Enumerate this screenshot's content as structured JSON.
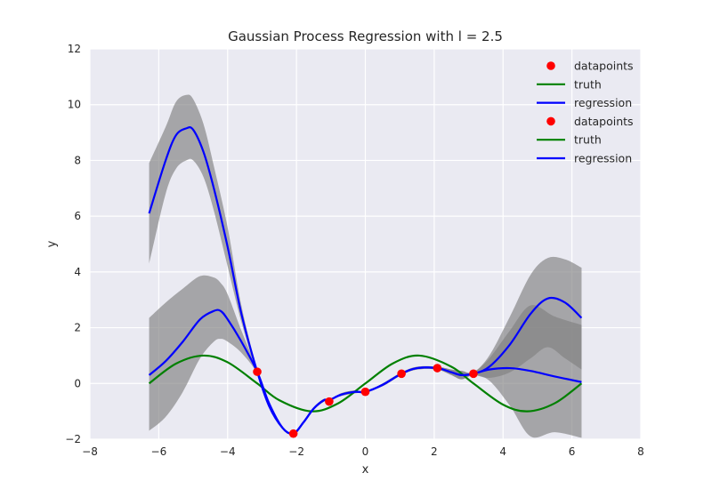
{
  "chart_data": {
    "type": "line",
    "title": "Gaussian Process Regression with l = 2.5",
    "xlabel": "x",
    "ylabel": "y",
    "xlim": [
      -8,
      8
    ],
    "ylim": [
      -2,
      12
    ],
    "xticks": [
      -8,
      -6,
      -4,
      -2,
      0,
      2,
      4,
      6,
      8
    ],
    "yticks": [
      -2,
      0,
      2,
      4,
      6,
      8,
      10,
      12
    ],
    "xtick_labels": [
      "−8",
      "−6",
      "−4",
      "−2",
      "0",
      "2",
      "4",
      "6",
      "8"
    ],
    "ytick_labels": [
      "−2",
      "0",
      "2",
      "4",
      "6",
      "8",
      "10",
      "12"
    ],
    "grid": true,
    "legend_position": "top-right",
    "legend": [
      {
        "label": "datapoints",
        "kind": "marker",
        "color": "#ff0000"
      },
      {
        "label": "truth",
        "kind": "line",
        "color": "#008000"
      },
      {
        "label": "regression",
        "kind": "line",
        "color": "#0000ff"
      },
      {
        "label": "datapoints",
        "kind": "marker",
        "color": "#ff0000"
      },
      {
        "label": "truth",
        "kind": "line",
        "color": "#008000"
      },
      {
        "label": "regression",
        "kind": "line",
        "color": "#0000ff"
      }
    ],
    "datapoints": {
      "x": [
        -3.14,
        -2.09,
        -1.05,
        0.0,
        1.05,
        2.09,
        3.14
      ],
      "y": [
        0.42,
        -1.8,
        -0.65,
        -0.3,
        0.35,
        0.55,
        0.35
      ]
    },
    "truth": {
      "x": [
        -6.28,
        -5.5,
        -4.71,
        -4.0,
        -3.14,
        -2.5,
        -1.57,
        -0.8,
        0.0,
        0.8,
        1.57,
        2.5,
        3.14,
        4.0,
        4.71,
        5.5,
        6.28
      ],
      "y": [
        0.0,
        0.71,
        1.0,
        0.76,
        0.0,
        -0.6,
        -1.0,
        -0.72,
        0.0,
        0.72,
        1.0,
        0.6,
        0.0,
        -0.76,
        -1.0,
        -0.71,
        0.0
      ]
    },
    "regression_1": {
      "x": [
        -6.28,
        -5.8,
        -5.5,
        -5.2,
        -5.0,
        -4.7,
        -4.4,
        -4.0,
        -3.6,
        -3.14,
        -2.8,
        -2.4,
        -2.09,
        -1.8,
        -1.5,
        -1.2,
        -1.05,
        -0.7,
        -0.3,
        0.0,
        0.5,
        1.05,
        1.5,
        2.09,
        2.5,
        2.8,
        3.14,
        3.6,
        4.2,
        4.8,
        5.5,
        6.28
      ],
      "y": [
        6.1,
        8.0,
        8.9,
        9.15,
        9.1,
        8.3,
        7.0,
        4.9,
        2.5,
        0.42,
        -0.8,
        -1.6,
        -1.8,
        -1.4,
        -0.9,
        -0.6,
        -0.6,
        -0.4,
        -0.3,
        -0.3,
        -0.05,
        0.35,
        0.55,
        0.55,
        0.4,
        0.3,
        0.35,
        0.5,
        0.55,
        0.45,
        0.25,
        0.05
      ],
      "lower": [
        4.3,
        6.8,
        7.7,
        8.0,
        8.0,
        7.4,
        6.2,
        4.2,
        2.2,
        0.35,
        -0.85,
        -1.65,
        -1.8,
        -1.45,
        -0.95,
        -0.65,
        -0.6,
        -0.45,
        -0.35,
        -0.3,
        -0.1,
        0.3,
        0.5,
        0.5,
        0.3,
        0.15,
        0.3,
        0.1,
        -0.8,
        -1.9,
        -1.75,
        -1.95
      ],
      "upper": [
        7.9,
        9.2,
        10.1,
        10.35,
        10.2,
        9.3,
        7.8,
        5.6,
        2.8,
        0.5,
        -0.75,
        -1.55,
        -1.8,
        -1.35,
        -0.85,
        -0.55,
        -0.6,
        -0.35,
        -0.25,
        -0.3,
        0.0,
        0.4,
        0.6,
        0.6,
        0.5,
        0.45,
        0.4,
        0.9,
        1.9,
        2.8,
        2.4,
        2.1
      ]
    },
    "regression_2": {
      "x": [
        -6.28,
        -5.8,
        -5.3,
        -4.8,
        -4.4,
        -4.2,
        -4.0,
        -3.6,
        -3.14,
        -2.8,
        -2.4,
        -2.09,
        -1.8,
        -1.5,
        -1.2,
        -1.05,
        -0.7,
        -0.3,
        0.0,
        0.5,
        1.05,
        1.5,
        2.09,
        2.5,
        2.8,
        3.14,
        3.6,
        4.2,
        4.8,
        5.3,
        5.8,
        6.28
      ],
      "y": [
        0.3,
        0.8,
        1.5,
        2.3,
        2.6,
        2.6,
        2.3,
        1.5,
        0.42,
        -0.7,
        -1.6,
        -1.8,
        -1.4,
        -0.9,
        -0.6,
        -0.6,
        -0.4,
        -0.3,
        -0.3,
        -0.05,
        0.35,
        0.55,
        0.55,
        0.4,
        0.3,
        0.35,
        0.6,
        1.4,
        2.5,
        3.05,
        2.9,
        2.35
      ],
      "lower": [
        -1.7,
        -1.2,
        -0.3,
        0.9,
        1.5,
        1.6,
        1.5,
        1.1,
        0.35,
        -0.75,
        -1.65,
        -1.8,
        -1.45,
        -0.95,
        -0.65,
        -0.6,
        -0.45,
        -0.35,
        -0.3,
        -0.1,
        0.3,
        0.5,
        0.5,
        0.3,
        0.15,
        0.3,
        0.2,
        0.4,
        0.9,
        1.3,
        0.9,
        0.5
      ],
      "upper": [
        2.35,
        2.9,
        3.4,
        3.85,
        3.8,
        3.6,
        3.2,
        1.9,
        0.5,
        -0.65,
        -1.55,
        -1.8,
        -1.35,
        -0.85,
        -0.55,
        -0.6,
        -0.35,
        -0.25,
        -0.3,
        0.0,
        0.4,
        0.6,
        0.6,
        0.5,
        0.45,
        0.4,
        1.0,
        2.4,
        3.9,
        4.5,
        4.45,
        4.15
      ]
    },
    "colors": {
      "background": "#eaeaf2",
      "grid": "#ffffff",
      "band": "#808080",
      "band_opacity": 0.65,
      "datapoints": "#ff0000",
      "truth": "#008000",
      "regression": "#0000ff"
    }
  }
}
